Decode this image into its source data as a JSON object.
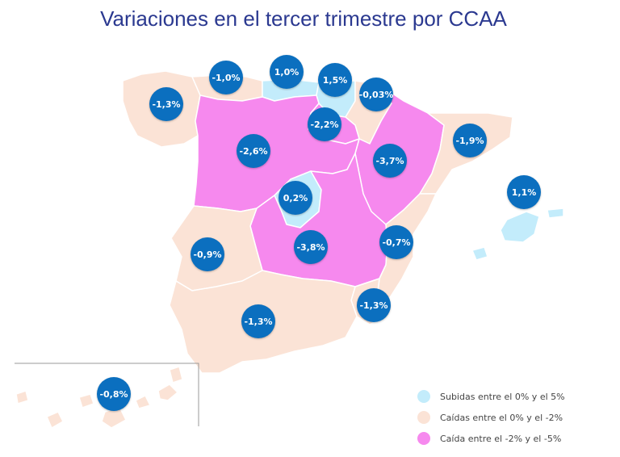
{
  "title": "Variaciones en el tercer trimestre por CCAA",
  "colors": {
    "rise": "#c3ecfb",
    "fall_small": "#fbe3d6",
    "fall_large": "#f689ee",
    "badge": "#0b6fbf",
    "border": "#ffffff"
  },
  "regions": [
    {
      "id": "galicia",
      "value": "-1,3%",
      "category": "fall_small"
    },
    {
      "id": "asturias",
      "value": "-1,0%",
      "category": "fall_small"
    },
    {
      "id": "cantabria",
      "value": "1,0%",
      "category": "rise"
    },
    {
      "id": "pais-vasco",
      "value": "1,5%",
      "category": "rise"
    },
    {
      "id": "navarra",
      "value": "-0,03%",
      "category": "fall_small"
    },
    {
      "id": "la-rioja",
      "value": "-2,2%",
      "category": "fall_large"
    },
    {
      "id": "castilla-y-leon",
      "value": "-2,6%",
      "category": "fall_large"
    },
    {
      "id": "aragon",
      "value": "-3,7%",
      "category": "fall_large"
    },
    {
      "id": "cataluna",
      "value": "-1,9%",
      "category": "fall_small"
    },
    {
      "id": "baleares",
      "value": "1,1%",
      "category": "rise"
    },
    {
      "id": "madrid",
      "value": "0,2%",
      "category": "rise"
    },
    {
      "id": "castilla-la-mancha",
      "value": "-3,8%",
      "category": "fall_large"
    },
    {
      "id": "valencia",
      "value": "-0,7%",
      "category": "fall_small"
    },
    {
      "id": "extremadura",
      "value": "-0,9%",
      "category": "fall_small"
    },
    {
      "id": "murcia",
      "value": "-1,3%",
      "category": "fall_small"
    },
    {
      "id": "andalucia",
      "value": "-1,3%",
      "category": "fall_small"
    },
    {
      "id": "canarias",
      "value": "-0,8%",
      "category": "fall_small"
    }
  ],
  "legend": [
    {
      "label": "Subidas entre el 0% y el 5%",
      "category": "rise"
    },
    {
      "label": "Caídas entre el 0% y el -2%",
      "category": "fall_small"
    },
    {
      "label": "Caída entre el -2% y el -5%",
      "category": "fall_large"
    }
  ]
}
